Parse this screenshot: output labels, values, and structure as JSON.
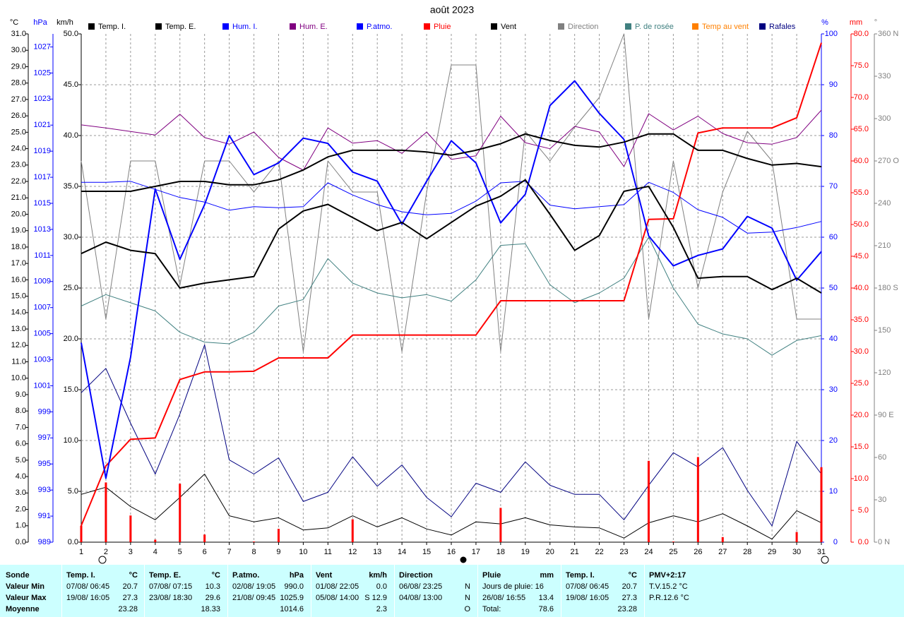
{
  "chart_data": {
    "type": "line",
    "title": "août 2023",
    "categories": [
      "1",
      "2",
      "3",
      "4",
      "5",
      "6",
      "7",
      "8",
      "9",
      "10",
      "11",
      "12",
      "13",
      "14",
      "15",
      "16",
      "17",
      "18",
      "19",
      "20",
      "21",
      "22",
      "23",
      "24",
      "25",
      "26",
      "27",
      "28",
      "29",
      "30",
      "31"
    ],
    "grid": true,
    "axes": {
      "temp": {
        "unit": "°C",
        "color": "#000000",
        "lim": [
          0,
          31
        ],
        "ticks": [
          {
            "value": 0,
            "label": "0.0"
          },
          {
            "value": 1,
            "label": "1.0"
          },
          {
            "value": 2,
            "label": "2.0"
          },
          {
            "value": 3,
            "label": "3.0"
          },
          {
            "value": 4,
            "label": "4.0"
          },
          {
            "value": 5,
            "label": "5.0"
          },
          {
            "value": 6,
            "label": "6.0"
          },
          {
            "value": 7,
            "label": "7.0"
          },
          {
            "value": 8,
            "label": "8.0"
          },
          {
            "value": 9,
            "label": "9.0"
          },
          {
            "value": 10,
            "label": "10.0"
          },
          {
            "value": 11,
            "label": "11.0"
          },
          {
            "value": 12,
            "label": "12.0"
          },
          {
            "value": 13,
            "label": "13.0"
          },
          {
            "value": 14,
            "label": "14.0"
          },
          {
            "value": 15,
            "label": "15.0"
          },
          {
            "value": 16,
            "label": "16.0"
          },
          {
            "value": 17,
            "label": "17.0"
          },
          {
            "value": 18,
            "label": "18.0"
          },
          {
            "value": 19,
            "label": "19.0"
          },
          {
            "value": 20,
            "label": "20.0"
          },
          {
            "value": 21,
            "label": "21.0"
          },
          {
            "value": 22,
            "label": "22.0"
          },
          {
            "value": 23,
            "label": "23.0"
          },
          {
            "value": 24,
            "label": "24.0"
          },
          {
            "value": 25,
            "label": "25.0"
          },
          {
            "value": 26,
            "label": "26.0"
          },
          {
            "value": 27,
            "label": "27.0"
          },
          {
            "value": 28,
            "label": "28.0"
          },
          {
            "value": 29,
            "label": "29.0"
          },
          {
            "value": 30,
            "label": "30.0"
          },
          {
            "value": 31,
            "label": "31.0"
          }
        ]
      },
      "hpa": {
        "unit": "hPa",
        "color": "#0000ff",
        "lim": [
          989,
          1028
        ],
        "ticks": [
          989,
          991,
          993,
          995,
          997,
          999,
          1001,
          1003,
          1005,
          1007,
          1009,
          1011,
          1013,
          1015,
          1017,
          1019,
          1021,
          1023,
          1025,
          1027
        ]
      },
      "kmh": {
        "unit": "km/h",
        "color": "#000000",
        "lim": [
          0,
          50
        ],
        "ticks": [
          {
            "value": 0,
            "label": "0.0"
          },
          {
            "value": 5,
            "label": "5.0"
          },
          {
            "value": 10,
            "label": "10.0"
          },
          {
            "value": 15,
            "label": "15.0"
          },
          {
            "value": 20,
            "label": "20.0"
          },
          {
            "value": 25,
            "label": "25.0"
          },
          {
            "value": 30,
            "label": "30.0"
          },
          {
            "value": 35,
            "label": "35.0"
          },
          {
            "value": 40,
            "label": "40.0"
          },
          {
            "value": 45,
            "label": "45.0"
          },
          {
            "value": 50,
            "label": "50.0"
          }
        ]
      },
      "pct": {
        "unit": "%",
        "color": "#0000ff",
        "lim": [
          0,
          100
        ],
        "ticks": [
          0,
          10,
          20,
          30,
          40,
          50,
          60,
          70,
          80,
          90,
          100
        ]
      },
      "mm": {
        "unit": "mm",
        "color": "#ff0000",
        "lim": [
          0,
          80
        ],
        "ticks": [
          {
            "value": 0,
            "label": "0.0"
          },
          {
            "value": 5,
            "label": "5.0"
          },
          {
            "value": 10,
            "label": "10.0"
          },
          {
            "value": 15,
            "label": "15.0"
          },
          {
            "value": 20,
            "label": "20.0"
          },
          {
            "value": 25,
            "label": "25.0"
          },
          {
            "value": 30,
            "label": "30.0"
          },
          {
            "value": 35,
            "label": "35.0"
          },
          {
            "value": 40,
            "label": "40.0"
          },
          {
            "value": 45,
            "label": "45.0"
          },
          {
            "value": 50,
            "label": "50.0"
          },
          {
            "value": 55,
            "label": "55.0"
          },
          {
            "value": 60,
            "label": "60.0"
          },
          {
            "value": 65,
            "label": "65.0"
          },
          {
            "value": 70,
            "label": "70.0"
          },
          {
            "value": 75,
            "label": "75.0"
          },
          {
            "value": 80,
            "label": "80.0"
          }
        ]
      },
      "dir": {
        "unit": "°",
        "color": "#808080",
        "lim": [
          0,
          360
        ],
        "ticks": [
          {
            "value": 0,
            "label": "0   N"
          },
          30,
          60,
          {
            "value": 90,
            "label": "90 E"
          },
          120,
          150,
          {
            "value": 180,
            "label": "180 S"
          },
          210,
          240,
          {
            "value": 270,
            "label": "270 O"
          },
          300,
          330,
          {
            "value": 360,
            "label": "360 N"
          }
        ]
      }
    },
    "series": [
      {
        "name": "Temp. I.",
        "color": "#000000",
        "axis": "temp",
        "line_width": 2,
        "values": [
          21.4,
          21.4,
          21.4,
          21.7,
          22.0,
          22.0,
          21.8,
          21.8,
          22.1,
          22.7,
          23.5,
          23.9,
          23.9,
          23.9,
          23.8,
          23.6,
          23.9,
          24.3,
          24.9,
          24.5,
          24.2,
          24.1,
          24.4,
          24.9,
          24.9,
          23.9,
          23.9,
          23.4,
          23.0,
          23.1,
          22.9
        ]
      },
      {
        "name": "Temp. E.",
        "color": "#000000",
        "axis": "temp",
        "line_width": 2,
        "values": [
          17.6,
          18.3,
          17.8,
          17.6,
          15.5,
          15.8,
          16.0,
          16.2,
          19.1,
          20.2,
          20.6,
          19.8,
          19.0,
          19.5,
          18.5,
          19.5,
          20.5,
          21.1,
          22.1,
          20.0,
          17.8,
          18.7,
          21.4,
          21.7,
          19.2,
          16.1,
          16.2,
          16.2,
          15.4,
          16.1,
          15.2
        ]
      },
      {
        "name": "Hum. I.",
        "color": "#0000ff",
        "axis": "pct",
        "line_width": 1,
        "values": [
          70.8,
          70.8,
          71.0,
          69.4,
          67.8,
          66.9,
          65.3,
          66.0,
          65.8,
          66.0,
          70.7,
          68.3,
          66.4,
          65.0,
          64.4,
          64.7,
          67.1,
          70.7,
          71.0,
          66.3,
          65.6,
          66.0,
          66.4,
          70.8,
          68.8,
          65.4,
          63.9,
          60.8,
          61.0,
          61.9,
          63.1
        ]
      },
      {
        "name": "Hum. E.",
        "color": "#800080",
        "axis": "pct",
        "line_width": 1,
        "values": [
          82.1,
          81.5,
          80.8,
          80.1,
          84.2,
          79.6,
          78.3,
          80.7,
          75.7,
          73.2,
          81.5,
          78.5,
          79.0,
          76.5,
          80.7,
          75.3,
          76.0,
          83.8,
          78.6,
          77.4,
          81.8,
          80.7,
          73.9,
          84.3,
          81.1,
          83.8,
          80.4,
          78.6,
          78.3,
          79.6,
          85.0
        ]
      },
      {
        "name": "P.atmo.",
        "color": "#0000ff",
        "axis": "hpa",
        "line_width": 2,
        "values": [
          1004.3,
          993.9,
          1003.2,
          1016.1,
          1010.7,
          1014.9,
          1020.2,
          1017.2,
          1018.1,
          1020.0,
          1019.6,
          1017.4,
          1016.7,
          1013.4,
          1016.7,
          1019.8,
          1018.1,
          1013.5,
          1015.7,
          1022.5,
          1024.4,
          1021.9,
          1019.9,
          1012.5,
          1010.2,
          1011.0,
          1011.5,
          1014.0,
          1013.1,
          1009.1,
          1011.3
        ]
      },
      {
        "name": "Pluie",
        "color": "#ff0000",
        "axis": "mm",
        "line_width": 2,
        "values": [
          2.6,
          12.0,
          16.2,
          16.4,
          25.6,
          26.8,
          26.8,
          26.9,
          29.0,
          29.0,
          29.0,
          32.6,
          32.6,
          32.6,
          32.6,
          32.6,
          32.6,
          38.0,
          38.0,
          38.0,
          38.0,
          38.0,
          38.0,
          50.8,
          50.9,
          64.4,
          65.2,
          65.2,
          65.2,
          66.8,
          78.6
        ],
        "bars": [
          2.6,
          9.4,
          4.2,
          0.4,
          9.2,
          1.2,
          0,
          0.1,
          2.1,
          0,
          0,
          3.6,
          0,
          0,
          0,
          0,
          0,
          5.4,
          0,
          0,
          0,
          0,
          0,
          12.8,
          0.1,
          13.4,
          0.8,
          0,
          0,
          1.6,
          11.8
        ]
      },
      {
        "name": "Vent",
        "color": "#000000",
        "axis": "kmh",
        "line_width": 1,
        "values": [
          4.7,
          5.4,
          3.5,
          2.2,
          4.4,
          6.7,
          2.6,
          2.0,
          2.4,
          1.2,
          1.4,
          2.6,
          1.5,
          2.4,
          1.3,
          0.7,
          2.0,
          1.8,
          2.4,
          1.7,
          1.5,
          1.4,
          0.4,
          1.9,
          2.6,
          2.0,
          2.8,
          1.6,
          0.3,
          3.1,
          1.9
        ]
      },
      {
        "name": "Direction",
        "color": "#808080",
        "axis": "dir",
        "line_width": 1,
        "values": [
          270,
          158,
          270,
          270,
          182,
          270,
          270,
          248,
          270,
          135,
          270,
          248,
          248,
          135,
          248,
          338,
          338,
          135,
          291,
          270,
          294,
          315,
          360,
          158,
          270,
          180,
          248,
          291,
          270,
          158,
          158
        ]
      },
      {
        "name": "P. de rosée",
        "color": "#408080",
        "axis": "temp",
        "line_width": 1,
        "values": [
          14.4,
          15.1,
          14.6,
          14.1,
          12.8,
          12.2,
          12.1,
          12.8,
          14.4,
          14.8,
          17.3,
          15.8,
          15.2,
          14.9,
          15.1,
          14.7,
          16.0,
          18.1,
          18.2,
          15.7,
          14.6,
          15.2,
          16.1,
          18.6,
          15.5,
          13.3,
          12.7,
          12.4,
          11.4,
          12.3,
          12.6
        ]
      },
      {
        "name": "Temp au vent",
        "color": "#ff8000",
        "axis": "temp",
        "line_width": 1,
        "values": [
          null,
          null,
          null,
          null,
          null,
          null,
          null,
          null,
          null,
          null,
          null,
          null,
          null,
          null,
          null,
          null,
          null,
          null,
          null,
          null,
          null,
          null,
          null,
          null,
          null,
          null,
          null,
          null,
          null,
          null,
          null
        ]
      },
      {
        "name": "Rafales",
        "color": "#000080",
        "axis": "kmh",
        "line_width": 1,
        "values": [
          14.7,
          17.1,
          11.7,
          6.7,
          12.6,
          19.4,
          8.1,
          6.7,
          8.3,
          4.0,
          4.9,
          8.4,
          5.5,
          7.6,
          4.4,
          2.5,
          5.8,
          4.9,
          7.9,
          5.6,
          4.7,
          4.7,
          2.2,
          5.6,
          8.8,
          7.4,
          9.3,
          5.1,
          1.6,
          9.9,
          6.7
        ]
      }
    ]
  },
  "summary": {
    "row_labels": [
      "Sonde",
      "Valeur Min",
      "Valeur Max",
      "Moyenne"
    ],
    "columns": [
      {
        "rows": [
          {
            "left": "Temp. I.",
            "right": "°C"
          },
          {
            "left": "07/08/ 06:45",
            "right": "20.7"
          },
          {
            "left": "19/08/ 16:05",
            "right": "27.3"
          },
          {
            "right": "23.28"
          }
        ]
      },
      {
        "rows": [
          {
            "left": "Temp. E.",
            "right": "°C"
          },
          {
            "left": "07/08/ 07:15",
            "right": "10.3"
          },
          {
            "left": "23/08/ 18:30",
            "right": "29.6"
          },
          {
            "right": "18.33"
          }
        ]
      },
      {
        "rows": [
          {
            "left": "P.atmo.",
            "right": "hPa"
          },
          {
            "left": "02/08/ 19:05",
            "right": "990.0"
          },
          {
            "left": "21/08/ 09:45",
            "right": "1025.9"
          },
          {
            "right": "1014.6"
          }
        ]
      },
      {
        "rows": [
          {
            "left": "Vent",
            "right": "km/h"
          },
          {
            "left": "01/08/ 22:05",
            "right": "0.0"
          },
          {
            "left": "05/08/ 14:00",
            "right": "S 12.9"
          },
          {
            "right": "2.3"
          }
        ]
      },
      {
        "rows": [
          {
            "left": "Direction"
          },
          {
            "left": "06/08/ 23:25",
            "right": "N"
          },
          {
            "left": "04/08/ 13:00",
            "right": "N"
          },
          {
            "right": "O"
          }
        ]
      },
      {
        "rows": [
          {
            "left": "Pluie",
            "right": "mm"
          },
          {
            "left": "Jours de pluie: 16"
          },
          {
            "left": "26/08/ 16:55",
            "right": "13.4"
          },
          {
            "left": "Total:",
            "right": "78.6"
          }
        ]
      },
      {
        "rows": [
          {
            "left": "Temp. I.",
            "right": "°C"
          },
          {
            "left": "07/08/ 06:45",
            "right": "20.7"
          },
          {
            "left": "19/08/ 16:05",
            "right": "27.3"
          },
          {
            "right": "23.28"
          }
        ]
      },
      {
        "rows": [
          {
            "left": "PMV+2:17"
          },
          {
            "left": "T.V.15.2 °C"
          },
          {
            "left": "P.R.12.6 °C"
          }
        ]
      }
    ]
  }
}
